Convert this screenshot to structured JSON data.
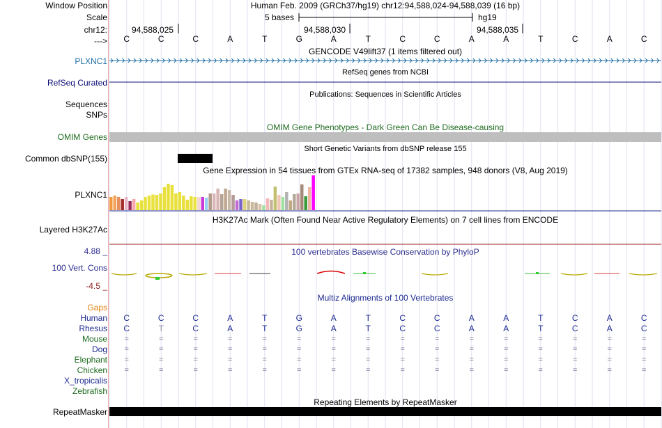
{
  "header": {
    "window_position_label": "Window Position",
    "window_position_value": "Human Feb. 2009 (GRCh37/hg19)    chr12:94,588,024-94,588,039 (16 bp)",
    "scale_label": "Scale",
    "scale_value": "5 bases",
    "scale_assembly": "hg19",
    "chrom_label": "chr12:",
    "position_ticks": [
      "94,588,025",
      "94,588,030",
      "94,588,035"
    ],
    "strand_label": "--->"
  },
  "sequence": [
    "C",
    "C",
    "C",
    "A",
    "T",
    "G",
    "A",
    "T",
    "C",
    "C",
    "A",
    "A",
    "T",
    "C",
    "A",
    "C"
  ],
  "tracks": {
    "gencode": {
      "title": "GENCODE V49lift37 (1 items filtered out)",
      "label": "PLXNC1",
      "color": "#1f6fa6"
    },
    "refseq": {
      "title": "RefSeq genes from NCBI",
      "label": "RefSeq Curated",
      "color": "#0c0c78"
    },
    "publications": {
      "title": "Publications: Sequences in Scientific Articles",
      "label_1": "Sequences",
      "label_2": "SNPs"
    },
    "omim": {
      "title": "OMIM Gene Phenotypes - Dark Green Can Be Disease-causing",
      "label": "OMIM Genes",
      "color": "#1e6b1e",
      "bar_color": "#bebebe"
    },
    "dbsnp": {
      "title": "Short Genetic Variants from dbSNP release 155",
      "label": "Common dbSNP(155)"
    },
    "gtex": {
      "title": "Gene Expression in 54 tissues from GTEx RNA-seq of 17382 samples, 948 donors (V8, Aug 2019)",
      "label": "PLXNC1",
      "values": [
        0.38,
        0.42,
        0.38,
        0.32,
        0.38,
        0.26,
        0.32,
        0.22,
        0.28,
        0.38,
        0.42,
        0.45,
        0.44,
        0.48,
        0.66,
        0.76,
        0.72,
        0.48,
        0.52,
        0.42,
        0.3,
        0.4,
        0.38,
        0.38,
        0.38,
        0.36,
        0.48,
        0.48,
        0.62,
        0.46,
        0.62,
        0.58,
        0.44,
        0.28,
        0.32,
        0.32,
        0.28,
        0.24,
        0.22,
        0.18,
        0.14,
        0.34,
        0.3,
        0.68,
        0.44,
        0.38,
        0.52,
        0.28,
        0.46,
        0.48,
        0.74,
        0.4,
        0.66,
        1.0
      ],
      "colors": [
        "#f39a3f",
        "#f3a45a",
        "#e89060",
        "#a52a2a",
        "#e7b7c7",
        "#9b2c5c",
        "#f5a7a9",
        "#e8e03c",
        "#e8e03c",
        "#eae23f",
        "#eae23f",
        "#eae23f",
        "#e8e03c",
        "#e8e03c",
        "#e8e03c",
        "#e8e03c",
        "#e8e03c",
        "#e8e03c",
        "#e8e03c",
        "#e8e03c",
        "#e8e03c",
        "#e8e03c",
        "#eae23f",
        "#f3d6d6",
        "#cc3ad6",
        "#9ad0f3",
        "#b39b8b",
        "#d7b7b7",
        "#d9b4b4",
        "#b5a495",
        "#c0a890",
        "#c9b8a8",
        "#b59a9a",
        "#c06ad6",
        "#7a63c9",
        "#e0d27a",
        "#c7b89a",
        "#c9b99a",
        "#c0b09a",
        "#d8c2a6",
        "#a0e0a0",
        "#f5b7b7",
        "#c5b59b",
        "#c2c070",
        "#f0c6b6",
        "#9fe0a0",
        "#b2b2b2",
        "#c2a884",
        "#b5a898",
        "#c8a4a4",
        "#a58a7a",
        "#3a9a3a",
        "#f0b4a4",
        "#ff00ff"
      ]
    },
    "h3k27ac": {
      "title": "H3K27Ac Mark (Often Found Near Active Regulatory Elements) on 7 cell lines from ENCODE",
      "label": "Layered H3K27Ac",
      "line_color": "#9b1c1c"
    },
    "conservation": {
      "title": "100 vertebrates Basewise Conservation by PhyloP",
      "label": "100 Vert. Cons",
      "ymax": "4.88 _",
      "ymin": "-4.5 _",
      "color": "#2d2d8f"
    },
    "multiz": {
      "title": "Multiz Alignments of 100 Vertebrates",
      "gaps_label": "Gaps",
      "gaps_color": "#e0810c",
      "species": [
        {
          "name": "Human",
          "color": "#1d2a8f"
        },
        {
          "name": "Rhesus",
          "color": "#1d2a8f"
        },
        {
          "name": "Mouse",
          "color": "#1e6b1e"
        },
        {
          "name": "Dog",
          "color": "#1d2a8f"
        },
        {
          "name": "Elephant",
          "color": "#1e6b1e"
        },
        {
          "name": "Chicken",
          "color": "#1e6b1e"
        },
        {
          "name": "X_tropicalis",
          "color": "#1d2a8f"
        },
        {
          "name": "Zebrafish",
          "color": "#1e6b1e"
        }
      ],
      "human_bases": [
        "C",
        "C",
        "C",
        "A",
        "T",
        "G",
        "A",
        "T",
        "C",
        "C",
        "A",
        "A",
        "T",
        "C",
        "A",
        "C"
      ],
      "rhesus_bases": [
        "C",
        "T",
        "C",
        "A",
        "T",
        "G",
        "A",
        "T",
        "C",
        "C",
        "A",
        "A",
        "T",
        "C",
        "A",
        "C"
      ],
      "match_symbol": "="
    },
    "repeatmasker": {
      "title": "Repeating Elements by RepeatMasker",
      "label": "RepeatMasker"
    }
  }
}
